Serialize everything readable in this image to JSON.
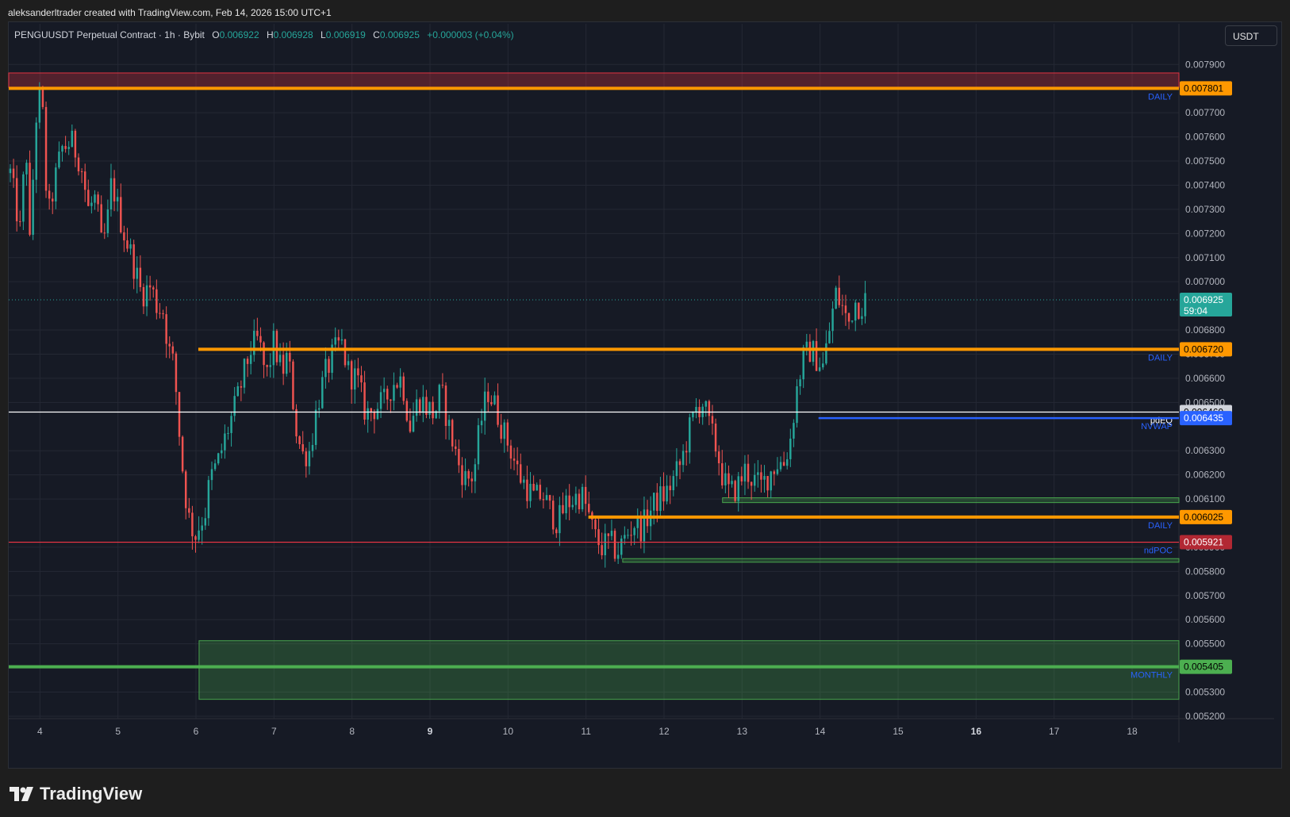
{
  "header": {
    "attribution": "aleksanderltrader created with TradingView.com, Feb 14, 2026 15:00 UTC+1"
  },
  "legend": {
    "symbol": "PENGUUSDT Perpetual Contract · 1h · Bybit",
    "o_key": "O",
    "o": "0.006922",
    "h_key": "H",
    "h": "0.006928",
    "l_key": "L",
    "l": "0.006919",
    "c_key": "C",
    "c": "0.006925",
    "change": "+0.000003 (+0.04%)"
  },
  "currency_button": "USDT",
  "footer": {
    "brand": "TradingView"
  },
  "colors": {
    "background": "#161a25",
    "up": "#26a69a",
    "down": "#ef5350",
    "daily_level": "#ff9800",
    "monthly_level": "#4caf50",
    "pdeq": "#ffffff",
    "nvwap": "#2962ff",
    "ndpoc": "#f23645"
  },
  "chart_data": {
    "type": "candlestick",
    "symbol": "PENGUUSDT",
    "timeframe": "1h",
    "exchange": "Bybit",
    "y_axis": {
      "range": [
        0.00519,
        0.00797
      ],
      "ticks": [
        "0.007900",
        "0.007700",
        "0.007600",
        "0.007500",
        "0.007400",
        "0.007300",
        "0.007200",
        "0.007100",
        "0.007000",
        "0.006800",
        "0.006700",
        "0.006600",
        "0.006500",
        "0.006300",
        "0.006200",
        "0.006100",
        "0.005900",
        "0.005800",
        "0.005700",
        "0.005600",
        "0.005500",
        "0.005300",
        "0.005200"
      ]
    },
    "x_axis": {
      "ticks": [
        {
          "label": "4",
          "day": 4
        },
        {
          "label": "5",
          "day": 5
        },
        {
          "label": "6",
          "day": 6
        },
        {
          "label": "7",
          "day": 7
        },
        {
          "label": "8",
          "day": 8
        },
        {
          "label": "9",
          "day": 9,
          "bold": true
        },
        {
          "label": "10",
          "day": 10
        },
        {
          "label": "11",
          "day": 11
        },
        {
          "label": "12",
          "day": 12
        },
        {
          "label": "13",
          "day": 13
        },
        {
          "label": "14",
          "day": 14
        },
        {
          "label": "15",
          "day": 15
        },
        {
          "label": "16",
          "day": 16,
          "bold": true
        },
        {
          "label": "17",
          "day": 17
        },
        {
          "label": "18",
          "day": 18
        }
      ],
      "range_days": [
        3.6,
        18.6
      ]
    },
    "last_price": {
      "value": 0.006925,
      "label": "0.006925",
      "countdown": "59:04"
    },
    "levels": [
      {
        "name": "DAILY",
        "price": 0.007801,
        "label": "0.007801",
        "color": "#ff9800",
        "start_day": 3.6,
        "width": "thick"
      },
      {
        "name": "DAILY",
        "price": 0.00672,
        "label": "0.006720",
        "color": "#ff9800",
        "start_day": 6.03,
        "width": "thick"
      },
      {
        "name": "DAILY",
        "price": 0.006025,
        "label": "0.006025",
        "color": "#ff9800",
        "start_day": 11.03,
        "width": "thick"
      },
      {
        "name": "MONTHLY",
        "price": 0.005405,
        "label": "0.005405",
        "color": "#4caf50",
        "start_day": 3.6,
        "width": "thick"
      },
      {
        "name": "pdEQ",
        "price": 0.00646,
        "label": "0.006460",
        "color": "#ffffff",
        "start_day": 3.6,
        "width": "thin"
      },
      {
        "name": "NVWAP",
        "price": 0.006435,
        "label": "0.006435",
        "color": "#2962ff",
        "start_day": 13.98,
        "width": "mid"
      },
      {
        "name": "ndPOC",
        "price": 0.005921,
        "label": "0.005921",
        "color": "#f23645",
        "start_day": 3.6,
        "width": "thin"
      }
    ],
    "zones": [
      {
        "top": 0.007865,
        "bottom": 0.007805,
        "start_day": 3.6,
        "color": "#f23645"
      },
      {
        "top": 0.005513,
        "bottom": 0.00527,
        "start_day": 6.04,
        "color": "#4caf50"
      },
      {
        "top": 0.006105,
        "bottom": 0.006085,
        "start_day": 12.75,
        "color": "#4caf50"
      },
      {
        "top": 0.005853,
        "bottom": 0.005838,
        "start_day": 11.47,
        "color": "#4caf50"
      }
    ],
    "anchors": [
      [
        3.62,
        0.00745
      ],
      [
        3.75,
        0.0072
      ],
      [
        3.82,
        0.0076
      ],
      [
        3.87,
        0.00715
      ],
      [
        3.95,
        0.00768
      ],
      [
        4.02,
        0.0078
      ],
      [
        4.1,
        0.00725
      ],
      [
        4.18,
        0.0074
      ],
      [
        4.28,
        0.00755
      ],
      [
        4.4,
        0.00758
      ],
      [
        4.52,
        0.0075
      ],
      [
        4.62,
        0.0073
      ],
      [
        4.72,
        0.00735
      ],
      [
        4.78,
        0.00715
      ],
      [
        4.85,
        0.0072
      ],
      [
        4.92,
        0.00742
      ],
      [
        5.0,
        0.0073
      ],
      [
        5.08,
        0.0072
      ],
      [
        5.18,
        0.0071
      ],
      [
        5.3,
        0.00695
      ],
      [
        5.42,
        0.00698
      ],
      [
        5.5,
        0.0069
      ],
      [
        5.58,
        0.00688
      ],
      [
        5.65,
        0.00672
      ],
      [
        5.72,
        0.00665
      ],
      [
        5.78,
        0.0064
      ],
      [
        5.85,
        0.00615
      ],
      [
        5.92,
        0.006
      ],
      [
        6.0,
        0.00595
      ],
      [
        6.05,
        0.006
      ],
      [
        6.12,
        0.00605
      ],
      [
        6.18,
        0.00618
      ],
      [
        6.28,
        0.00625
      ],
      [
        6.4,
        0.00638
      ],
      [
        6.52,
        0.0065
      ],
      [
        6.6,
        0.0066
      ],
      [
        6.7,
        0.00672
      ],
      [
        6.8,
        0.00676
      ],
      [
        6.9,
        0.0066
      ],
      [
        7.0,
        0.00675
      ],
      [
        7.1,
        0.00662
      ],
      [
        7.18,
        0.0067
      ],
      [
        7.28,
        0.0064
      ],
      [
        7.36,
        0.00628
      ],
      [
        7.46,
        0.0063
      ],
      [
        7.56,
        0.0065
      ],
      [
        7.66,
        0.00662
      ],
      [
        7.76,
        0.0067
      ],
      [
        7.86,
        0.00675
      ],
      [
        7.96,
        0.00662
      ],
      [
        8.06,
        0.0066
      ],
      [
        8.18,
        0.00645
      ],
      [
        8.3,
        0.00648
      ],
      [
        8.42,
        0.0065
      ],
      [
        8.52,
        0.00658
      ],
      [
        8.64,
        0.0066
      ],
      [
        8.74,
        0.0064
      ],
      [
        8.86,
        0.00652
      ],
      [
        8.96,
        0.00648
      ],
      [
        9.06,
        0.00645
      ],
      [
        9.14,
        0.00655
      ],
      [
        9.24,
        0.0064
      ],
      [
        9.36,
        0.00625
      ],
      [
        9.46,
        0.00618
      ],
      [
        9.56,
        0.0062
      ],
      [
        9.64,
        0.0064
      ],
      [
        9.74,
        0.00655
      ],
      [
        9.84,
        0.00648
      ],
      [
        9.94,
        0.00638
      ],
      [
        10.04,
        0.0063
      ],
      [
        10.14,
        0.0062
      ],
      [
        10.24,
        0.00615
      ],
      [
        10.34,
        0.0061
      ],
      [
        10.44,
        0.00612
      ],
      [
        10.54,
        0.00605
      ],
      [
        10.64,
        0.006
      ],
      [
        10.74,
        0.00608
      ],
      [
        10.84,
        0.0061
      ],
      [
        10.94,
        0.00612
      ],
      [
        11.02,
        0.00605
      ],
      [
        11.1,
        0.00595
      ],
      [
        11.2,
        0.0059
      ],
      [
        11.3,
        0.00592
      ],
      [
        11.4,
        0.00588
      ],
      [
        11.52,
        0.00595
      ],
      [
        11.62,
        0.006
      ],
      [
        11.72,
        0.00598
      ],
      [
        11.82,
        0.00605
      ],
      [
        11.92,
        0.0061
      ],
      [
        12.02,
        0.00612
      ],
      [
        12.12,
        0.00618
      ],
      [
        12.22,
        0.00625
      ],
      [
        12.32,
        0.00638
      ],
      [
        12.42,
        0.00648
      ],
      [
        12.5,
        0.0065
      ],
      [
        12.58,
        0.0064
      ],
      [
        12.68,
        0.0063
      ],
      [
        12.76,
        0.00618
      ],
      [
        12.84,
        0.00612
      ],
      [
        12.94,
        0.00615
      ],
      [
        13.04,
        0.00622
      ],
      [
        13.14,
        0.00618
      ],
      [
        13.24,
        0.00615
      ],
      [
        13.34,
        0.0062
      ],
      [
        13.44,
        0.00625
      ],
      [
        13.54,
        0.00625
      ],
      [
        13.62,
        0.00635
      ],
      [
        13.7,
        0.00655
      ],
      [
        13.78,
        0.00668
      ],
      [
        13.88,
        0.00672
      ],
      [
        13.96,
        0.00668
      ],
      [
        14.04,
        0.00665
      ],
      [
        14.12,
        0.0068
      ],
      [
        14.2,
        0.00695
      ],
      [
        14.28,
        0.0069
      ],
      [
        14.36,
        0.00682
      ],
      [
        14.44,
        0.00692
      ],
      [
        14.52,
        0.0069
      ],
      [
        14.58,
        0.006925
      ]
    ]
  }
}
